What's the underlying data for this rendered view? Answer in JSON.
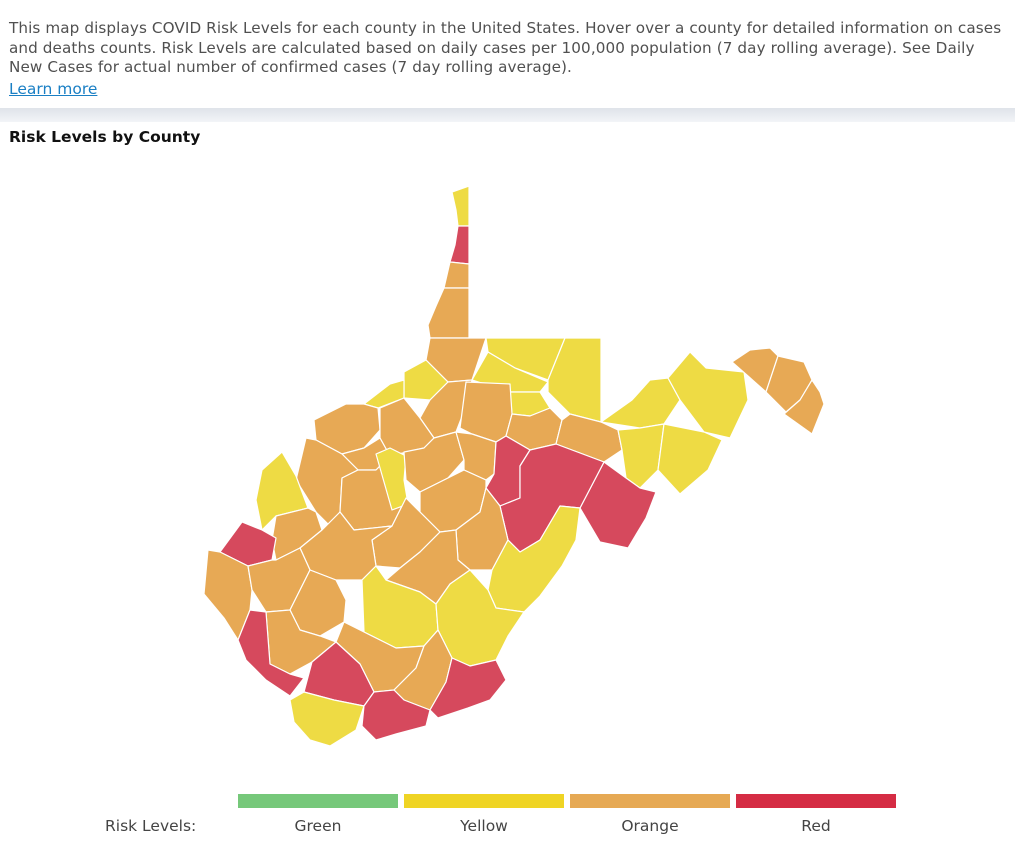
{
  "info": {
    "description": "This map displays COVID Risk Levels for each county in the United States. Hover over a county for detailed information on cases and deaths counts. Risk Levels are calculated based on daily cases per 100,000 population (7 day rolling average). See Daily New Cases for actual number of confirmed cases (7 day rolling average).",
    "learn_more": "Learn more"
  },
  "map": {
    "title": "Risk Levels by County",
    "state": "West Virginia",
    "colors": {
      "green": "#7bc97b",
      "yellow": "#eedb44",
      "orange": "#e7a955",
      "red": "#d6495d"
    }
  },
  "legend": {
    "label": "Risk Levels:",
    "levels": [
      {
        "name": "Green",
        "color": "#76c87a"
      },
      {
        "name": "Yellow",
        "color": "#efd424"
      },
      {
        "name": "Orange",
        "color": "#e6a954"
      },
      {
        "name": "Red",
        "color": "#d52c44"
      }
    ]
  }
}
